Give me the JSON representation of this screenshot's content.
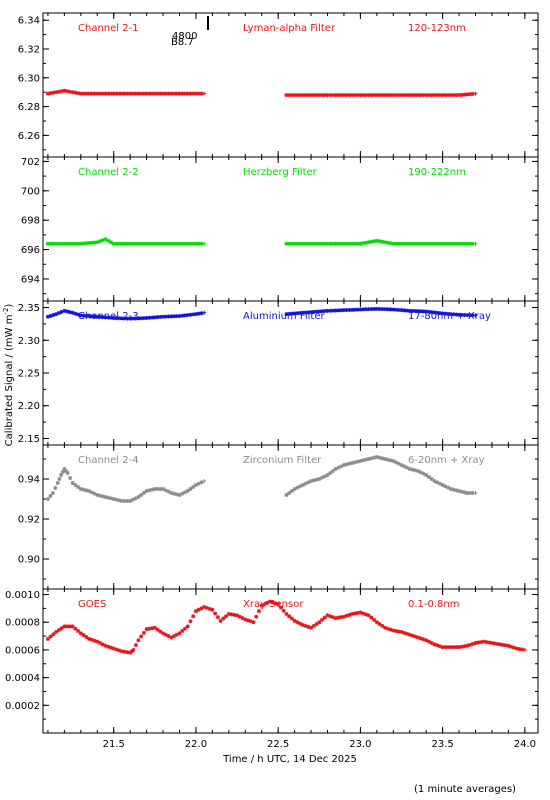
{
  "ylabel": "Calibrated Signal / (mW m",
  "ylabel_sup": "-2",
  "ylabel_close": ")",
  "xlabel": "Time / h UTC, 14 Dec 2025",
  "note": "(1 minute averages)",
  "marker_text": [
    "4800",
    "B8.7"
  ],
  "chart_data": [
    {
      "type": "scatter",
      "panel": "Channel 2-1",
      "labels": [
        "Channel 2-1",
        "Lyman-alpha Filter",
        "120-123nm"
      ],
      "color": "#e8141c",
      "ylim": [
        6.245,
        6.345
      ],
      "yticks": [
        6.26,
        6.28,
        6.3,
        6.32,
        6.34
      ],
      "ytick_labels": [
        "6.26",
        "6.28",
        "6.30",
        "6.32",
        "6.34"
      ],
      "series": [
        {
          "x": [
            21.1,
            21.15,
            21.2,
            21.25,
            21.3,
            21.4,
            21.5,
            21.6,
            21.7,
            21.8,
            21.9,
            22.0,
            22.05,
            null,
            22.55,
            22.6,
            22.7,
            22.8,
            22.9,
            23.0,
            23.1,
            23.2,
            23.3,
            23.4,
            23.5,
            23.6,
            23.7
          ],
          "y": [
            6.289,
            6.29,
            6.291,
            6.29,
            6.289,
            6.289,
            6.289,
            6.289,
            6.289,
            6.289,
            6.289,
            6.289,
            6.289,
            null,
            6.288,
            6.288,
            6.288,
            6.288,
            6.288,
            6.288,
            6.288,
            6.288,
            6.288,
            6.288,
            6.288,
            6.288,
            6.289
          ]
        }
      ]
    },
    {
      "type": "scatter",
      "panel": "Channel 2-2",
      "labels": [
        "Channel 2-2",
        "Herzberg Filter",
        "190-222nm"
      ],
      "color": "#00dd00",
      "ylim": [
        692.5,
        702.3
      ],
      "yticks": [
        694,
        696,
        698,
        700,
        702
      ],
      "ytick_labels": [
        "694",
        "696",
        "698",
        "700",
        "702"
      ],
      "series": [
        {
          "x": [
            21.1,
            21.2,
            21.3,
            21.4,
            21.45,
            21.5,
            21.6,
            21.7,
            21.8,
            21.9,
            22.0,
            22.05,
            null,
            22.55,
            22.6,
            22.7,
            22.8,
            22.9,
            23.0,
            23.1,
            23.2,
            23.3,
            23.4,
            23.5,
            23.6,
            23.7
          ],
          "y": [
            696.4,
            696.4,
            696.4,
            696.5,
            696.7,
            696.4,
            696.4,
            696.4,
            696.4,
            696.4,
            696.4,
            696.4,
            null,
            696.4,
            696.4,
            696.4,
            696.4,
            696.4,
            696.4,
            696.6,
            696.4,
            696.4,
            696.4,
            696.4,
            696.4,
            696.4
          ]
        }
      ]
    },
    {
      "type": "scatter",
      "panel": "Channel 2-3",
      "labels": [
        "Channel 2-3",
        "Aluminium Filter",
        "17-80nm + Xray"
      ],
      "color": "#1414d8",
      "ylim": [
        2.14,
        2.36
      ],
      "yticks": [
        2.15,
        2.2,
        2.25,
        2.3,
        2.35
      ],
      "ytick_labels": [
        "2.15",
        "2.20",
        "2.25",
        "2.30",
        "2.35"
      ],
      "series": [
        {
          "x": [
            21.1,
            21.15,
            21.2,
            21.25,
            21.3,
            21.4,
            21.5,
            21.6,
            21.7,
            21.8,
            21.9,
            22.0,
            22.05,
            null,
            22.55,
            22.6,
            22.7,
            22.8,
            22.9,
            23.0,
            23.1,
            23.2,
            23.3,
            23.4,
            23.5,
            23.6,
            23.7
          ],
          "y": [
            2.336,
            2.34,
            2.345,
            2.342,
            2.338,
            2.336,
            2.334,
            2.333,
            2.334,
            2.336,
            2.337,
            2.34,
            2.342,
            null,
            2.34,
            2.341,
            2.343,
            2.345,
            2.346,
            2.347,
            2.348,
            2.347,
            2.345,
            2.344,
            2.341,
            2.339,
            2.338
          ]
        }
      ]
    },
    {
      "type": "scatter",
      "panel": "Channel 2-4",
      "labels": [
        "Channel 2-4",
        "Zirconium Filter",
        "6-20nm + Xray"
      ],
      "color": "#8c8c8c",
      "ylim": [
        0.885,
        0.957
      ],
      "yticks": [
        0.9,
        0.92,
        0.94
      ],
      "ytick_labels": [
        "0.90",
        "0.92",
        "0.94"
      ],
      "series": [
        {
          "x": [
            21.1,
            21.13,
            21.16,
            21.18,
            21.2,
            21.22,
            21.25,
            21.3,
            21.35,
            21.4,
            21.45,
            21.5,
            21.55,
            21.6,
            21.65,
            21.7,
            21.75,
            21.8,
            21.85,
            21.9,
            21.95,
            22.0,
            22.05,
            null,
            22.55,
            22.6,
            22.65,
            22.7,
            22.75,
            22.8,
            22.85,
            22.9,
            22.95,
            23.0,
            23.05,
            23.1,
            23.15,
            23.2,
            23.25,
            23.3,
            23.35,
            23.4,
            23.45,
            23.5,
            23.55,
            23.6,
            23.65,
            23.7
          ],
          "y": [
            0.93,
            0.933,
            0.938,
            0.942,
            0.945,
            0.943,
            0.938,
            0.935,
            0.934,
            0.932,
            0.931,
            0.93,
            0.929,
            0.929,
            0.931,
            0.934,
            0.935,
            0.935,
            0.933,
            0.932,
            0.934,
            0.937,
            0.939,
            null,
            0.932,
            0.935,
            0.937,
            0.939,
            0.94,
            0.942,
            0.945,
            0.947,
            0.948,
            0.949,
            0.95,
            0.951,
            0.95,
            0.949,
            0.947,
            0.945,
            0.944,
            0.942,
            0.939,
            0.937,
            0.935,
            0.934,
            0.933,
            0.933
          ]
        }
      ]
    },
    {
      "type": "scatter",
      "panel": "GOES",
      "labels": [
        "GOES",
        "Xray Sensor",
        "0.1-0.8nm"
      ],
      "color": "#e8141c",
      "ylim": [
        0.0,
        0.00104
      ],
      "yticks": [
        0.0002,
        0.0004,
        0.0006,
        0.0008,
        0.001
      ],
      "ytick_labels": [
        "0.0002",
        "0.0004",
        "0.0006",
        "0.0008",
        "0.0010"
      ],
      "series": [
        {
          "x": [
            21.1,
            21.15,
            21.2,
            21.25,
            21.3,
            21.35,
            21.4,
            21.45,
            21.5,
            21.55,
            21.6,
            21.62,
            21.65,
            21.7,
            21.75,
            21.8,
            21.85,
            21.9,
            21.95,
            22.0,
            22.05,
            22.1,
            22.15,
            22.2,
            22.25,
            22.3,
            22.35,
            22.4,
            22.45,
            22.5,
            22.55,
            22.6,
            22.65,
            22.7,
            22.75,
            22.8,
            22.85,
            22.9,
            22.95,
            23.0,
            23.05,
            23.1,
            23.15,
            23.2,
            23.25,
            23.3,
            23.35,
            23.4,
            23.45,
            23.5,
            23.55,
            23.6,
            23.65,
            23.7,
            23.75,
            23.8,
            23.85,
            23.9,
            23.95,
            24.0
          ],
          "y": [
            0.00068,
            0.00073,
            0.00077,
            0.00077,
            0.00072,
            0.00068,
            0.00066,
            0.00063,
            0.00061,
            0.00059,
            0.00058,
            0.0006,
            0.00067,
            0.00075,
            0.00076,
            0.00072,
            0.00069,
            0.00072,
            0.00077,
            0.00088,
            0.00091,
            0.00089,
            0.00081,
            0.00086,
            0.00085,
            0.00082,
            0.0008,
            0.00092,
            0.00095,
            0.00093,
            0.00086,
            0.00081,
            0.00078,
            0.00076,
            0.0008,
            0.00085,
            0.00083,
            0.00084,
            0.00086,
            0.00087,
            0.00085,
            0.0008,
            0.00076,
            0.00074,
            0.00073,
            0.00071,
            0.00069,
            0.00067,
            0.00064,
            0.00062,
            0.00062,
            0.00062,
            0.00063,
            0.00065,
            0.00066,
            0.00065,
            0.00064,
            0.00063,
            0.00061,
            0.0006
          ]
        }
      ]
    }
  ],
  "x_axis": {
    "xlim": [
      21.07,
      24.08
    ],
    "ticks": [
      21.5,
      22.0,
      22.5,
      23.0,
      23.5,
      24.0
    ],
    "tick_labels": [
      "21.5",
      "22.0",
      "22.5",
      "23.0",
      "23.5",
      "24.0"
    ]
  }
}
